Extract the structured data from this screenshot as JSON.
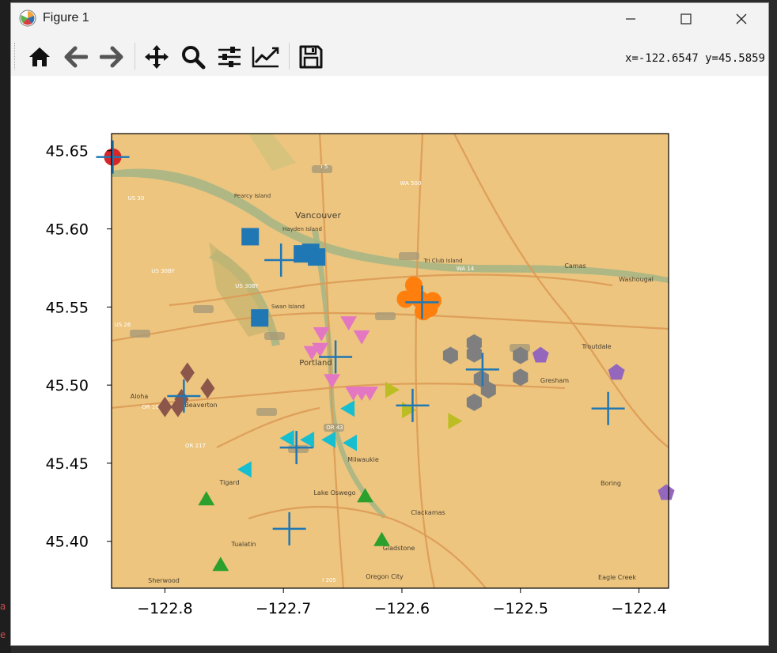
{
  "window": {
    "title": "Figure 1",
    "icon": "matplotlib-logo-icon",
    "controls": [
      "minimize-icon",
      "maximize-icon",
      "close-icon"
    ]
  },
  "toolbar": {
    "buttons": [
      {
        "name": "home",
        "icon": "home-icon"
      },
      {
        "name": "back",
        "icon": "arrow-left-icon"
      },
      {
        "name": "forward",
        "icon": "arrow-right-icon"
      },
      {
        "name": "pan",
        "icon": "move-icon"
      },
      {
        "name": "zoom",
        "icon": "magnifier-icon"
      },
      {
        "name": "configure-subplots",
        "icon": "sliders-icon"
      },
      {
        "name": "edit-axis",
        "icon": "line-chart-icon"
      },
      {
        "name": "save",
        "icon": "floppy-disk-icon"
      }
    ],
    "coords": "x=-122.6547 y=45.5859"
  },
  "chart_data": {
    "type": "scatter",
    "background": "street basemap of the Portland / Vancouver area",
    "basemap_labels": [
      "Vancouver",
      "Portland",
      "Hayden Island",
      "Pearcy Island",
      "Swan Island",
      "Tri Club Island",
      "Camas",
      "Washougal",
      "Gresham",
      "Troutdale",
      "Aloha",
      "Beaverton",
      "Tigard",
      "Lake Oswego",
      "Milwaukie",
      "Clackamas",
      "Gladstone",
      "Oregon City",
      "Tualatin",
      "Sherwood",
      "Boring",
      "Eagle Creek",
      "US 30",
      "US 30BY",
      "US 26",
      "OR 10",
      "OR 217",
      "OR 43",
      "I 205",
      "I 5",
      "WA 14",
      "WA 500"
    ],
    "xlim": [
      -122.845,
      -122.375
    ],
    "ylim": [
      45.37,
      45.661
    ],
    "x_ticks": [
      -122.8,
      -122.7,
      -122.6,
      -122.5,
      -122.4
    ],
    "x_tick_labels": [
      "−122.8",
      "−122.7",
      "−122.6",
      "−122.5",
      "−122.4"
    ],
    "y_ticks": [
      45.4,
      45.45,
      45.5,
      45.55,
      45.6,
      45.65
    ],
    "y_tick_labels": [
      "45.40",
      "45.45",
      "45.50",
      "45.55",
      "45.60",
      "45.65"
    ],
    "grid": false,
    "legend": "none",
    "series": [
      {
        "marker": "circle",
        "color": "#d62728",
        "points": [
          [
            -122.844,
            45.646
          ]
        ]
      },
      {
        "marker": "square",
        "color": "#1f77b4",
        "points": [
          [
            -122.728,
            45.595
          ],
          [
            -122.72,
            45.543
          ],
          [
            -122.684,
            45.584
          ],
          [
            -122.677,
            45.585
          ],
          [
            -122.672,
            45.582
          ]
        ]
      },
      {
        "marker": "circle",
        "color": "#ff7f0e",
        "points": [
          [
            -122.597,
            45.555
          ],
          [
            -122.59,
            45.564
          ],
          [
            -122.585,
            45.555
          ],
          [
            -122.582,
            45.547
          ],
          [
            -122.577,
            45.549
          ],
          [
            -122.574,
            45.554
          ]
        ]
      },
      {
        "marker": "hexagon",
        "color": "#7f7f7f",
        "points": [
          [
            -122.559,
            45.519
          ],
          [
            -122.539,
            45.527
          ],
          [
            -122.539,
            45.52
          ],
          [
            -122.533,
            45.504
          ],
          [
            -122.527,
            45.497
          ],
          [
            -122.539,
            45.489
          ],
          [
            -122.5,
            45.519
          ],
          [
            -122.5,
            45.505
          ]
        ]
      },
      {
        "marker": "pentagon",
        "color": "#9467bd",
        "points": [
          [
            -122.483,
            45.519
          ],
          [
            -122.419,
            45.508
          ],
          [
            -122.377,
            45.431
          ]
        ]
      },
      {
        "marker": "diamond",
        "color": "#8c564b",
        "points": [
          [
            -122.781,
            45.508
          ],
          [
            -122.764,
            45.498
          ],
          [
            -122.786,
            45.491
          ],
          [
            -122.8,
            45.486
          ],
          [
            -122.789,
            45.486
          ]
        ]
      },
      {
        "marker": "triangle_down",
        "color": "#e377c2",
        "points": [
          [
            -122.668,
            45.534
          ],
          [
            -122.645,
            45.541
          ],
          [
            -122.634,
            45.532
          ],
          [
            -122.676,
            45.522
          ],
          [
            -122.669,
            45.524
          ],
          [
            -122.659,
            45.504
          ],
          [
            -122.641,
            45.496
          ],
          [
            -122.627,
            45.496
          ],
          [
            -122.634,
            45.496
          ]
        ]
      },
      {
        "marker": "triangle_right",
        "color": "#bcbd22",
        "points": [
          [
            -122.61,
            45.497
          ],
          [
            -122.596,
            45.484
          ],
          [
            -122.557,
            45.477
          ]
        ]
      },
      {
        "marker": "triangle_left",
        "color": "#17becf",
        "points": [
          [
            -122.644,
            45.485
          ],
          [
            -122.695,
            45.466
          ],
          [
            -122.678,
            45.465
          ],
          [
            -122.66,
            45.465
          ],
          [
            -122.642,
            45.463
          ],
          [
            -122.731,
            45.446
          ]
        ]
      },
      {
        "marker": "triangle_up",
        "color": "#2ca02c",
        "points": [
          [
            -122.765,
            45.426
          ],
          [
            -122.631,
            45.428
          ],
          [
            -122.617,
            45.4
          ],
          [
            -122.753,
            45.384
          ]
        ]
      },
      {
        "marker": "plus",
        "color": "#1f77b4",
        "points": [
          [
            -122.844,
            45.646
          ],
          [
            -122.702,
            45.58
          ],
          [
            -122.583,
            45.553
          ],
          [
            -122.656,
            45.518
          ],
          [
            -122.532,
            45.51
          ],
          [
            -122.784,
            45.493
          ],
          [
            -122.591,
            45.487
          ],
          [
            -122.426,
            45.485
          ],
          [
            -122.689,
            45.46
          ],
          [
            -122.695,
            45.408
          ]
        ]
      }
    ]
  }
}
